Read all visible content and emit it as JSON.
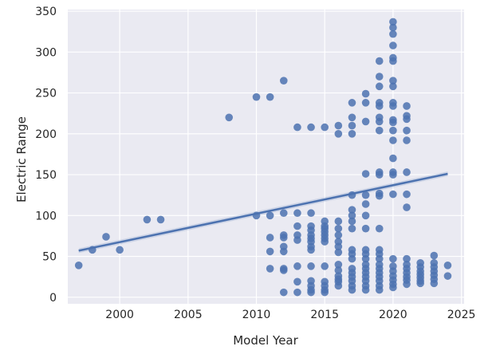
{
  "chart_data": {
    "type": "scatter",
    "title": "",
    "xlabel": "Model Year",
    "ylabel": "Electric Range",
    "xlim": [
      1996.2,
      2025.2
    ],
    "ylim": [
      -8,
      352
    ],
    "xticks": [
      2000,
      2005,
      2010,
      2015,
      2020,
      2025
    ],
    "yticks": [
      0,
      50,
      100,
      150,
      200,
      250,
      300,
      350
    ],
    "grid": true,
    "legend": "none",
    "colors": {
      "background": "#eaeaf2",
      "grid": "#ffffff",
      "points": "#4c72b0",
      "regression": "#4c72b0"
    },
    "points": [
      [
        1997,
        39
      ],
      [
        1998,
        58
      ],
      [
        1999,
        74
      ],
      [
        2000,
        58
      ],
      [
        2002,
        95
      ],
      [
        2003,
        95
      ],
      [
        2008,
        220
      ],
      [
        2010,
        245
      ],
      [
        2010,
        100
      ],
      [
        2011,
        245
      ],
      [
        2011,
        100
      ],
      [
        2011,
        73
      ],
      [
        2011,
        56
      ],
      [
        2011,
        35
      ],
      [
        2012,
        265
      ],
      [
        2012,
        103
      ],
      [
        2012,
        76
      ],
      [
        2012,
        73
      ],
      [
        2012,
        62
      ],
      [
        2012,
        56
      ],
      [
        2012,
        35
      ],
      [
        2012,
        33
      ],
      [
        2012,
        6
      ],
      [
        2013,
        208
      ],
      [
        2013,
        103
      ],
      [
        2013,
        87
      ],
      [
        2013,
        76
      ],
      [
        2013,
        70
      ],
      [
        2013,
        38
      ],
      [
        2013,
        19
      ],
      [
        2013,
        6
      ],
      [
        2014,
        208
      ],
      [
        2014,
        103
      ],
      [
        2014,
        87
      ],
      [
        2014,
        82
      ],
      [
        2014,
        76
      ],
      [
        2014,
        72
      ],
      [
        2014,
        68
      ],
      [
        2014,
        62
      ],
      [
        2014,
        58
      ],
      [
        2014,
        38
      ],
      [
        2014,
        20
      ],
      [
        2014,
        14
      ],
      [
        2014,
        9
      ],
      [
        2014,
        6
      ],
      [
        2015,
        208
      ],
      [
        2015,
        93
      ],
      [
        2015,
        87
      ],
      [
        2015,
        84
      ],
      [
        2015,
        80
      ],
      [
        2015,
        76
      ],
      [
        2015,
        72
      ],
      [
        2015,
        68
      ],
      [
        2015,
        38
      ],
      [
        2015,
        19
      ],
      [
        2015,
        14
      ],
      [
        2015,
        9
      ],
      [
        2015,
        6
      ],
      [
        2016,
        210
      ],
      [
        2016,
        200
      ],
      [
        2016,
        93
      ],
      [
        2016,
        84
      ],
      [
        2016,
        76
      ],
      [
        2016,
        68
      ],
      [
        2016,
        62
      ],
      [
        2016,
        55
      ],
      [
        2016,
        40
      ],
      [
        2016,
        33
      ],
      [
        2016,
        26
      ],
      [
        2016,
        22
      ],
      [
        2016,
        19
      ],
      [
        2016,
        14
      ],
      [
        2017,
        238
      ],
      [
        2017,
        220
      ],
      [
        2017,
        210
      ],
      [
        2017,
        200
      ],
      [
        2017,
        125
      ],
      [
        2017,
        107
      ],
      [
        2017,
        100
      ],
      [
        2017,
        93
      ],
      [
        2017,
        84
      ],
      [
        2017,
        58
      ],
      [
        2017,
        53
      ],
      [
        2017,
        47
      ],
      [
        2017,
        35
      ],
      [
        2017,
        30
      ],
      [
        2017,
        25
      ],
      [
        2017,
        20
      ],
      [
        2017,
        14
      ],
      [
        2017,
        9
      ],
      [
        2018,
        249
      ],
      [
        2018,
        238
      ],
      [
        2018,
        215
      ],
      [
        2018,
        151
      ],
      [
        2018,
        125
      ],
      [
        2018,
        114
      ],
      [
        2018,
        100
      ],
      [
        2018,
        84
      ],
      [
        2018,
        58
      ],
      [
        2018,
        53
      ],
      [
        2018,
        47
      ],
      [
        2018,
        40
      ],
      [
        2018,
        35
      ],
      [
        2018,
        30
      ],
      [
        2018,
        25
      ],
      [
        2018,
        20
      ],
      [
        2018,
        14
      ],
      [
        2018,
        9
      ],
      [
        2019,
        289
      ],
      [
        2019,
        270
      ],
      [
        2019,
        258
      ],
      [
        2019,
        238
      ],
      [
        2019,
        234
      ],
      [
        2019,
        220
      ],
      [
        2019,
        215
      ],
      [
        2019,
        204
      ],
      [
        2019,
        153
      ],
      [
        2019,
        150
      ],
      [
        2019,
        127
      ],
      [
        2019,
        124
      ],
      [
        2019,
        84
      ],
      [
        2019,
        58
      ],
      [
        2019,
        53
      ],
      [
        2019,
        47
      ],
      [
        2019,
        40
      ],
      [
        2019,
        35
      ],
      [
        2019,
        30
      ],
      [
        2019,
        25
      ],
      [
        2019,
        20
      ],
      [
        2019,
        14
      ],
      [
        2019,
        9
      ],
      [
        2020,
        337
      ],
      [
        2020,
        330
      ],
      [
        2020,
        322
      ],
      [
        2020,
        308
      ],
      [
        2020,
        293
      ],
      [
        2020,
        289
      ],
      [
        2020,
        265
      ],
      [
        2020,
        258
      ],
      [
        2020,
        238
      ],
      [
        2020,
        234
      ],
      [
        2020,
        217
      ],
      [
        2020,
        214
      ],
      [
        2020,
        204
      ],
      [
        2020,
        192
      ],
      [
        2020,
        170
      ],
      [
        2020,
        153
      ],
      [
        2020,
        150
      ],
      [
        2020,
        126
      ],
      [
        2020,
        47
      ],
      [
        2020,
        38
      ],
      [
        2020,
        32
      ],
      [
        2020,
        26
      ],
      [
        2020,
        21
      ],
      [
        2020,
        16
      ],
      [
        2020,
        12
      ],
      [
        2021,
        234
      ],
      [
        2021,
        222
      ],
      [
        2021,
        218
      ],
      [
        2021,
        204
      ],
      [
        2021,
        192
      ],
      [
        2021,
        153
      ],
      [
        2021,
        126
      ],
      [
        2021,
        110
      ],
      [
        2021,
        47
      ],
      [
        2021,
        40
      ],
      [
        2021,
        35
      ],
      [
        2021,
        30
      ],
      [
        2021,
        25
      ],
      [
        2021,
        21
      ],
      [
        2021,
        16
      ],
      [
        2022,
        42
      ],
      [
        2022,
        37
      ],
      [
        2022,
        32
      ],
      [
        2022,
        28
      ],
      [
        2022,
        24
      ],
      [
        2022,
        20
      ],
      [
        2022,
        17
      ],
      [
        2023,
        51
      ],
      [
        2023,
        42
      ],
      [
        2023,
        37
      ],
      [
        2023,
        32
      ],
      [
        2023,
        27
      ],
      [
        2023,
        22
      ],
      [
        2023,
        17
      ],
      [
        2024,
        39
      ],
      [
        2024,
        26
      ]
    ],
    "regression": {
      "x": [
        1997,
        2024
      ],
      "y": [
        57,
        151
      ]
    }
  }
}
